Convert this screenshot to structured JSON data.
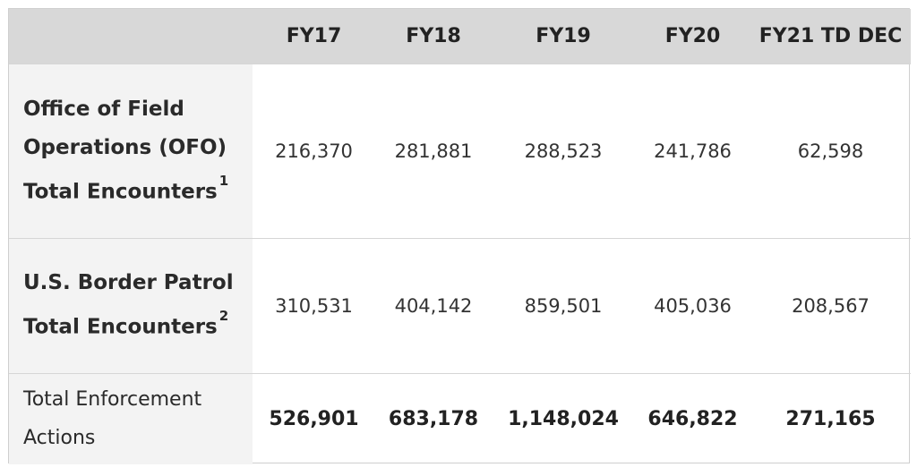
{
  "table": {
    "columns": [
      "FY17",
      "FY18",
      "FY19",
      "FY20",
      "FY21 TD DEC"
    ],
    "rows": [
      {
        "label": "Office of Field Operations (OFO) Total Encounters",
        "footnote": "1",
        "values": [
          "216,370",
          "281,881",
          "288,523",
          "241,786",
          "62,598"
        ]
      },
      {
        "label": "U.S. Border Patrol Total Encounters",
        "footnote": "2",
        "values": [
          "310,531",
          "404,142",
          "859,501",
          "405,036",
          "208,567"
        ]
      },
      {
        "label": "Total Enforcement Actions",
        "values": [
          "526,901",
          "683,178",
          "1,148,024",
          "646,822",
          "271,165"
        ]
      }
    ]
  }
}
